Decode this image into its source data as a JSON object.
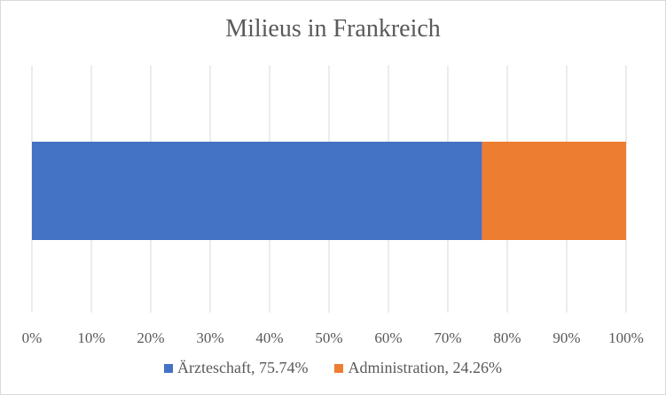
{
  "chart_data": {
    "type": "bar",
    "orientation": "horizontal",
    "stacked": "percent",
    "title": "Milieus in Frankreich",
    "xlabel": "",
    "ylabel": "",
    "xlim": [
      0,
      100
    ],
    "x_ticks": [
      "0%",
      "10%",
      "20%",
      "30%",
      "40%",
      "50%",
      "60%",
      "70%",
      "80%",
      "90%",
      "100%"
    ],
    "grid": true,
    "legend_position": "bottom",
    "categories": [
      ""
    ],
    "series": [
      {
        "name": "Ärzteschaft, 75.74%",
        "values": [
          75.74
        ],
        "color": "#4472c4"
      },
      {
        "name": "Administration, 24.26%",
        "values": [
          24.26
        ],
        "color": "#ed7d31"
      }
    ]
  }
}
